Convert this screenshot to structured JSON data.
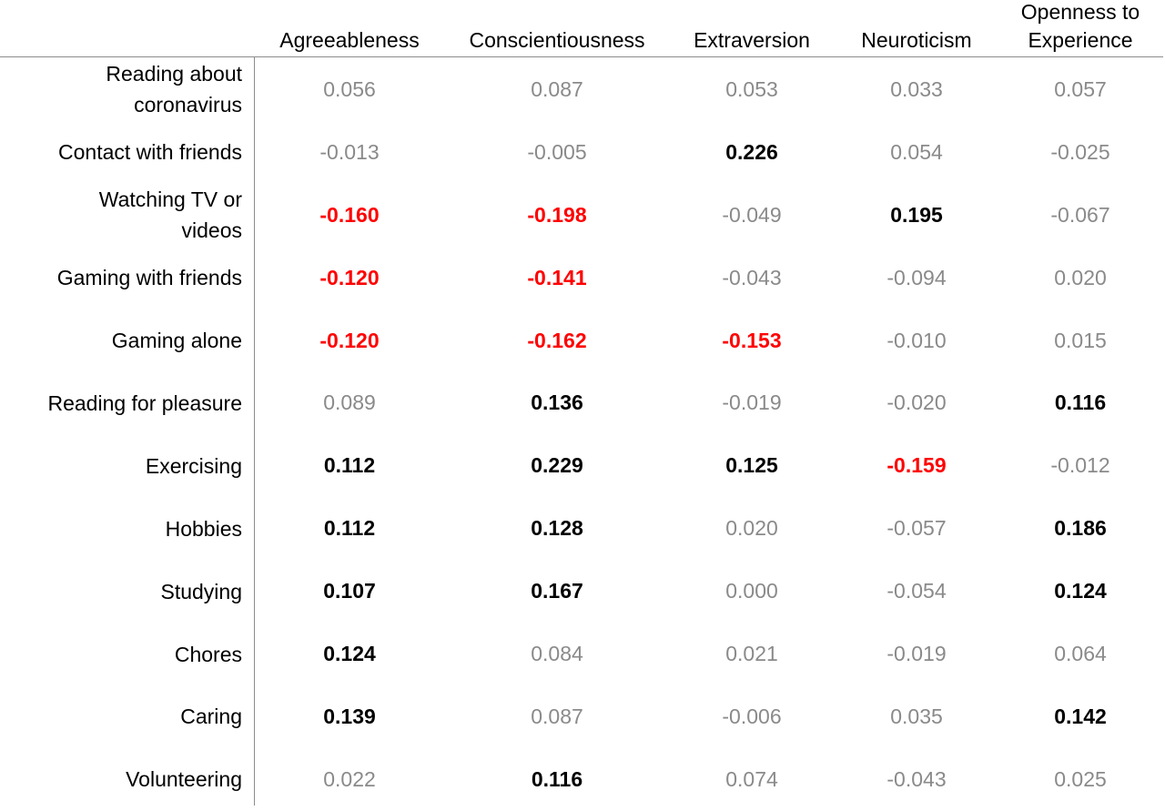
{
  "chart_data": {
    "type": "table",
    "columns": [
      "Agreeableness",
      "Conscientiousness",
      "Extraversion",
      "Neuroticism",
      "Openness to Experience"
    ],
    "column_header_lines": [
      [
        "Agreeableness"
      ],
      [
        "Conscientiousness"
      ],
      [
        "Extraversion"
      ],
      [
        "Neuroticism"
      ],
      [
        "Openness to",
        "Experience"
      ]
    ],
    "rows": [
      {
        "label": "Reading about coronavirus",
        "label_lines": [
          "Reading about",
          "coronavirus"
        ],
        "cells": [
          {
            "text": "0.056",
            "sig": "none"
          },
          {
            "text": "0.087",
            "sig": "none"
          },
          {
            "text": "0.053",
            "sig": "none"
          },
          {
            "text": "0.033",
            "sig": "none"
          },
          {
            "text": "0.057",
            "sig": "none"
          }
        ]
      },
      {
        "label": "Contact with friends",
        "label_lines": [
          "Contact with friends"
        ],
        "cells": [
          {
            "text": "-0.013",
            "sig": "none"
          },
          {
            "text": "-0.005",
            "sig": "none"
          },
          {
            "text": "0.226",
            "sig": "positive"
          },
          {
            "text": "0.054",
            "sig": "none"
          },
          {
            "text": "-0.025",
            "sig": "none"
          }
        ]
      },
      {
        "label": "Watching TV or videos",
        "label_lines": [
          "Watching TV or",
          "videos"
        ],
        "cells": [
          {
            "text": "-0.160",
            "sig": "negative"
          },
          {
            "text": "-0.198",
            "sig": "negative"
          },
          {
            "text": "-0.049",
            "sig": "none"
          },
          {
            "text": "0.195",
            "sig": "positive"
          },
          {
            "text": "-0.067",
            "sig": "none"
          }
        ]
      },
      {
        "label": "Gaming with friends",
        "label_lines": [
          "Gaming with friends"
        ],
        "cells": [
          {
            "text": "-0.120",
            "sig": "negative"
          },
          {
            "text": "-0.141",
            "sig": "negative"
          },
          {
            "text": "-0.043",
            "sig": "none"
          },
          {
            "text": "-0.094",
            "sig": "none"
          },
          {
            "text": "0.020",
            "sig": "none"
          }
        ]
      },
      {
        "label": "Gaming alone",
        "label_lines": [
          "Gaming alone"
        ],
        "cells": [
          {
            "text": "-0.120",
            "sig": "negative"
          },
          {
            "text": "-0.162",
            "sig": "negative"
          },
          {
            "text": "-0.153",
            "sig": "negative"
          },
          {
            "text": "-0.010",
            "sig": "none"
          },
          {
            "text": "0.015",
            "sig": "none"
          }
        ]
      },
      {
        "label": "Reading for pleasure",
        "label_lines": [
          "Reading for pleasure"
        ],
        "cells": [
          {
            "text": "0.089",
            "sig": "none"
          },
          {
            "text": "0.136",
            "sig": "positive"
          },
          {
            "text": "-0.019",
            "sig": "none"
          },
          {
            "text": "-0.020",
            "sig": "none"
          },
          {
            "text": "0.116",
            "sig": "positive"
          }
        ]
      },
      {
        "label": "Exercising",
        "label_lines": [
          "Exercising"
        ],
        "cells": [
          {
            "text": "0.112",
            "sig": "positive"
          },
          {
            "text": "0.229",
            "sig": "positive"
          },
          {
            "text": "0.125",
            "sig": "positive"
          },
          {
            "text": "-0.159",
            "sig": "negative"
          },
          {
            "text": "-0.012",
            "sig": "none"
          }
        ]
      },
      {
        "label": "Hobbies",
        "label_lines": [
          "Hobbies"
        ],
        "cells": [
          {
            "text": "0.112",
            "sig": "positive"
          },
          {
            "text": "0.128",
            "sig": "positive"
          },
          {
            "text": "0.020",
            "sig": "none"
          },
          {
            "text": "-0.057",
            "sig": "none"
          },
          {
            "text": "0.186",
            "sig": "positive"
          }
        ]
      },
      {
        "label": "Studying",
        "label_lines": [
          "Studying"
        ],
        "cells": [
          {
            "text": "0.107",
            "sig": "positive"
          },
          {
            "text": "0.167",
            "sig": "positive"
          },
          {
            "text": "0.000",
            "sig": "none"
          },
          {
            "text": "-0.054",
            "sig": "none"
          },
          {
            "text": "0.124",
            "sig": "positive"
          }
        ]
      },
      {
        "label": "Chores",
        "label_lines": [
          "Chores"
        ],
        "cells": [
          {
            "text": "0.124",
            "sig": "positive"
          },
          {
            "text": "0.084",
            "sig": "none"
          },
          {
            "text": "0.021",
            "sig": "none"
          },
          {
            "text": "-0.019",
            "sig": "none"
          },
          {
            "text": "0.064",
            "sig": "none"
          }
        ]
      },
      {
        "label": "Caring",
        "label_lines": [
          "Caring"
        ],
        "cells": [
          {
            "text": "0.139",
            "sig": "positive"
          },
          {
            "text": "0.087",
            "sig": "none"
          },
          {
            "text": "-0.006",
            "sig": "none"
          },
          {
            "text": "0.035",
            "sig": "none"
          },
          {
            "text": "0.142",
            "sig": "positive"
          }
        ]
      },
      {
        "label": "Volunteering",
        "label_lines": [
          "Volunteering"
        ],
        "cells": [
          {
            "text": "0.022",
            "sig": "none"
          },
          {
            "text": "0.116",
            "sig": "positive"
          },
          {
            "text": "0.074",
            "sig": "none"
          },
          {
            "text": "-0.043",
            "sig": "none"
          },
          {
            "text": "0.025",
            "sig": "none"
          }
        ]
      }
    ],
    "colors": {
      "significant_positive": "#000000",
      "significant_negative": "#ff0000",
      "non_significant": "#8a8a8a",
      "rule": "#8c8c8c"
    }
  }
}
